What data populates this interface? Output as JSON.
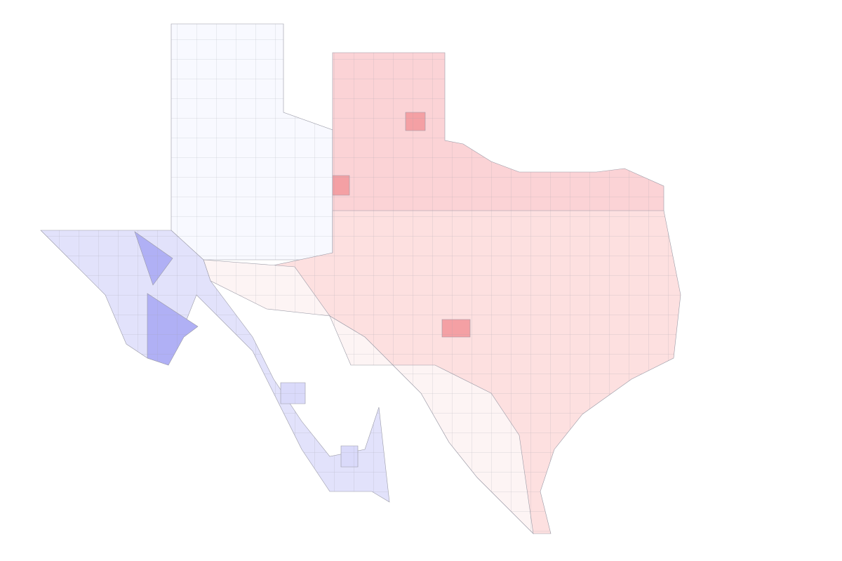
{
  "map": {
    "colors": {
      "panhandle": "#f8f9ff",
      "north": "#fbd3d6",
      "east": "#fde0e0",
      "west": "#e2e2fb",
      "far_west": "#b0b0f5",
      "border": "#dadafa",
      "south": "#fdf4f4",
      "hot": "#f4a0a4"
    }
  }
}
